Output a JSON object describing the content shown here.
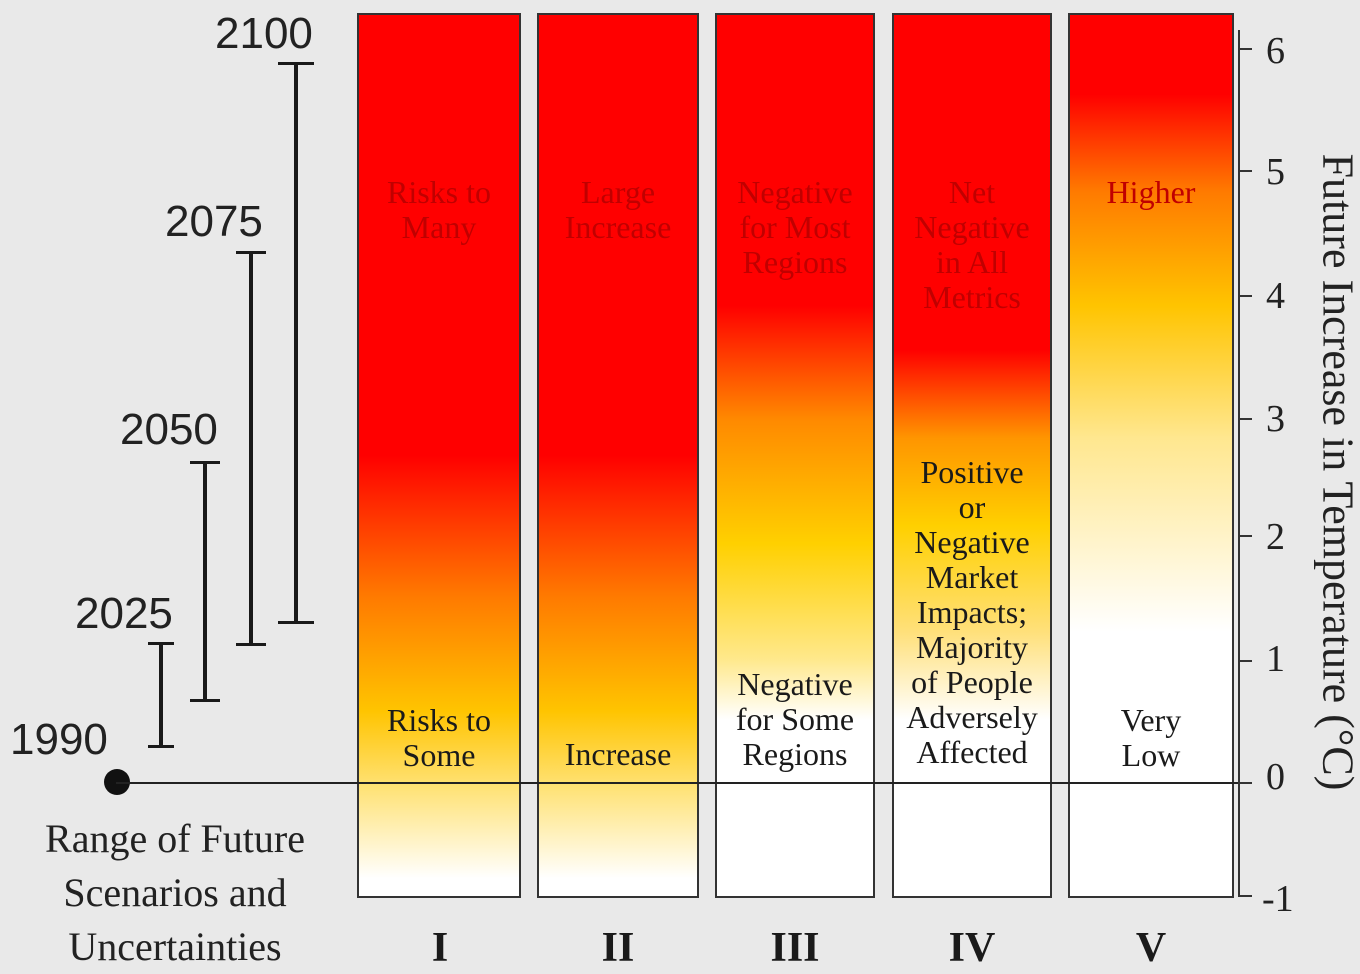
{
  "timeline": {
    "years": [
      "2100",
      "2075",
      "2050",
      "2025",
      "1990"
    ],
    "caption": [
      "Range of Future",
      "Scenarios and",
      "Uncertainties"
    ]
  },
  "columns": [
    {
      "numeral": "I",
      "top_text": [
        "Risks to",
        "Many"
      ],
      "bottom_text": [
        "Risks to",
        "Some"
      ]
    },
    {
      "numeral": "II",
      "top_text": [
        "Large",
        "Increase"
      ],
      "bottom_text": [
        "Increase"
      ]
    },
    {
      "numeral": "III",
      "top_text": [
        "Negative",
        "for Most",
        "Regions"
      ],
      "bottom_text": [
        "Negative",
        "for Some",
        "Regions"
      ]
    },
    {
      "numeral": "IV",
      "top_text": [
        "Net",
        "Negative",
        "in All",
        "Metrics"
      ],
      "bottom_text": [
        "Positive",
        "or",
        "Negative",
        "Market",
        "Impacts;",
        "Majority",
        "of People",
        "Adversely",
        "Affected"
      ]
    },
    {
      "numeral": "V",
      "top_text": [
        "Higher"
      ],
      "bottom_text": [
        "Very",
        "Low"
      ]
    }
  ],
  "axis": {
    "title": "Future Increase in Temperature (°C)",
    "ticks": [
      "6",
      "5",
      "4",
      "3",
      "2",
      "1",
      "0",
      "-1"
    ],
    "range": [
      -1,
      6
    ]
  },
  "colors": {
    "hot": "#ff0000",
    "warm": "#ffc400",
    "neutral": "#ffffff",
    "top_label": "#c00000"
  }
}
